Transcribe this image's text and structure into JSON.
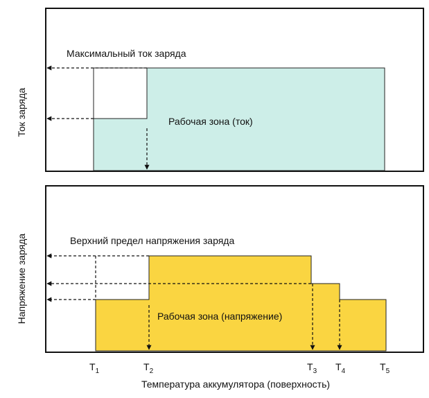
{
  "top_panel": {
    "y_label": "Ток заряда",
    "max_label": "Максимальный ток заряда",
    "zone_label": "Рабочая зона (ток)"
  },
  "bottom_panel": {
    "y_label": "Напряжение заряда",
    "max_label": "Верхний предел напряжения заряда",
    "zone_label": "Рабочая зона (напряжение)"
  },
  "x_axis": {
    "label": "Температура аккумулятора (поверхность)",
    "ticks": [
      {
        "base": "T",
        "sub": "1"
      },
      {
        "base": "T",
        "sub": "2"
      },
      {
        "base": "T",
        "sub": "3"
      },
      {
        "base": "T",
        "sub": "4"
      },
      {
        "base": "T",
        "sub": "5"
      }
    ]
  },
  "colors": {
    "current_zone": "#cdeee8",
    "voltage_zone": "#fad541",
    "frame": "#111111"
  }
}
